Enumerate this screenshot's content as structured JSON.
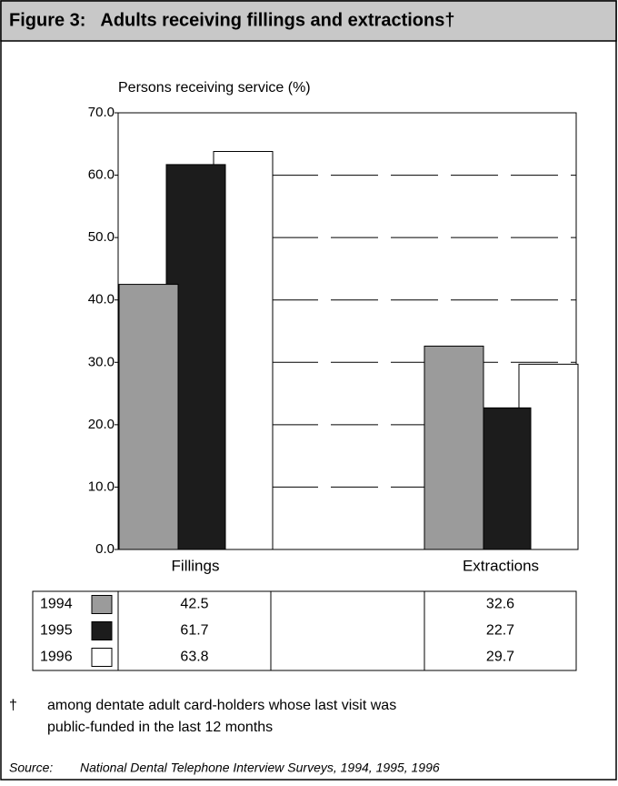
{
  "chart_data": {
    "type": "bar",
    "title": "Figure 3:   Adults receiving fillings and extractions†",
    "y_label": "Persons receiving service (%)",
    "categories": [
      "Fillings",
      "Extractions"
    ],
    "series": [
      {
        "name": "1994",
        "color": "#9b9b9b",
        "values": [
          42.5,
          32.6
        ]
      },
      {
        "name": "1995",
        "color": "#1c1c1c",
        "values": [
          61.7,
          22.7
        ]
      },
      {
        "name": "1996",
        "color": "#ffffff",
        "values": [
          63.8,
          29.7
        ]
      }
    ],
    "ylim": [
      0,
      70
    ],
    "yticks": [
      {
        "value": 0,
        "label": "0.0"
      },
      {
        "value": 10,
        "label": "10.0"
      },
      {
        "value": 20,
        "label": "20.0"
      },
      {
        "value": 30,
        "label": "30.0"
      },
      {
        "value": 40,
        "label": "40.0"
      },
      {
        "value": 50,
        "label": "50.0"
      },
      {
        "value": 60,
        "label": "60.0"
      },
      {
        "value": 70,
        "label": "70.0"
      }
    ],
    "grid": true
  },
  "footnote": {
    "symbol": "†",
    "lines": [
      "among dentate adult card-holders whose last visit was",
      "public-funded in the last 12 months"
    ]
  },
  "source": {
    "label": "Source:",
    "text": "National Dental Telephone Interview Surveys, 1994, 1995, 1996"
  }
}
